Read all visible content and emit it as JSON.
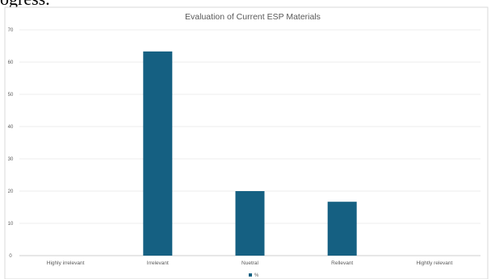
{
  "top_text": "ogress.",
  "chart_data": {
    "type": "bar",
    "title": "Evaluation of Current ESP Materials",
    "categories": [
      "Highly irrelevant",
      "Irrelevant",
      "Nuetral",
      "Rellevant",
      "Hightly relevant"
    ],
    "series": [
      {
        "name": "%",
        "values": [
          0,
          63.3,
          20,
          16.7,
          0
        ],
        "color": "#156082"
      }
    ],
    "ylim": [
      0,
      70
    ],
    "yticks": [
      0,
      10,
      20,
      30,
      40,
      50,
      60,
      70
    ],
    "grid": true,
    "legend": "bottom",
    "xlabel": "",
    "ylabel": ""
  }
}
